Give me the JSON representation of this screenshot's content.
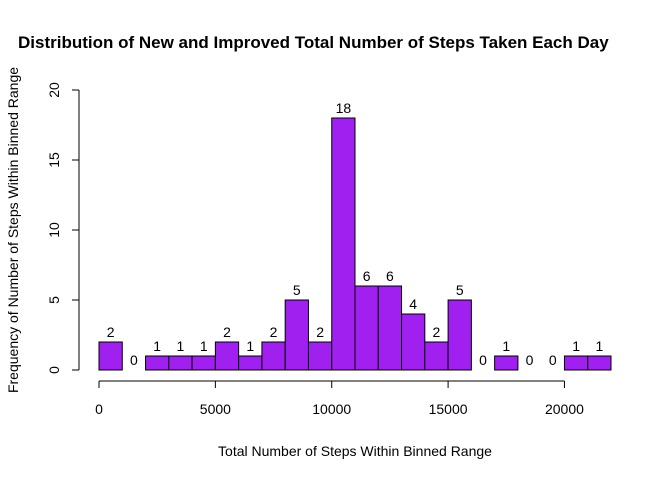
{
  "chart_data": {
    "type": "bar",
    "title": "Distribution of New and Improved Total Number of Steps Taken Each Day",
    "xlabel": "Total Number of Steps Within Binned Range",
    "ylabel": "Frequency of Number of Steps Within Binned Range",
    "bin_width": 1000,
    "x_start": 0,
    "values": [
      2,
      0,
      1,
      1,
      1,
      2,
      1,
      2,
      5,
      2,
      18,
      6,
      6,
      4,
      2,
      5,
      0,
      1,
      0,
      0,
      1,
      1
    ],
    "xlim": [
      0,
      22000
    ],
    "ylim": [
      0,
      20
    ],
    "xticks": [
      0,
      5000,
      10000,
      15000,
      20000
    ],
    "yticks": [
      0,
      5,
      10,
      15,
      20
    ],
    "bar_color": "#a020f0",
    "grid": false,
    "legend": "none"
  }
}
